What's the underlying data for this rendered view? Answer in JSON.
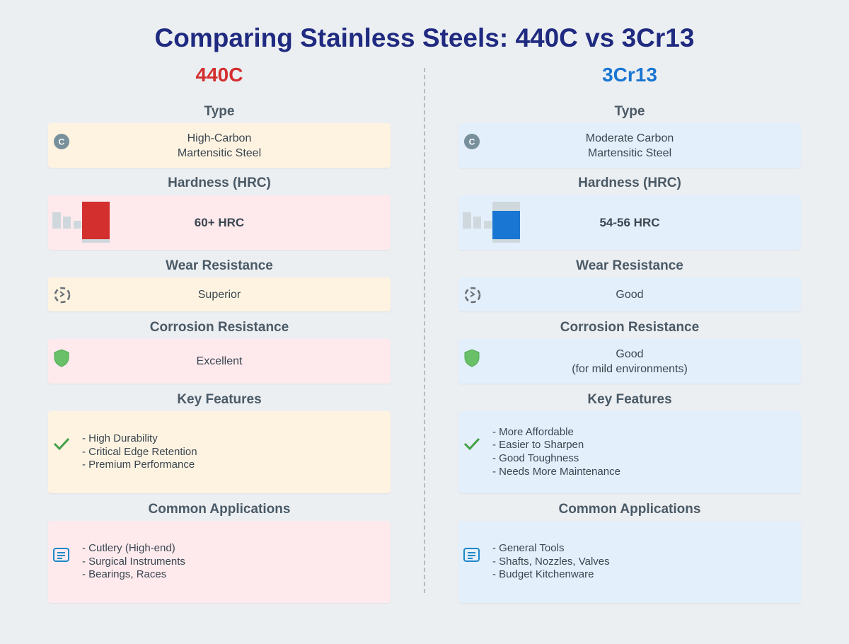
{
  "title": "Comparing Stainless Steels: 440C vs 3Cr13",
  "colors": {
    "title": "#1f2a80",
    "steel_440c": "#d32f2f",
    "steel_3cr13": "#1976d2",
    "bg_orange": "#fef3e1",
    "bg_pink": "#feeaed",
    "bg_blue": "#e3effb",
    "check": "#43a047",
    "shield": "#6abf69",
    "doc_icon": "#1e88c7"
  },
  "left": {
    "name": "440C",
    "type_label": "Type",
    "type_value": "High-Carbon\nMartensitic Steel",
    "hardness_label": "Hardness (HRC)",
    "hardness_value": "60+ HRC",
    "hardness_level": 1.0,
    "wear_label": "Wear Resistance",
    "wear_value": "Superior",
    "corrosion_label": "Corrosion Resistance",
    "corrosion_value": "Excellent",
    "features_label": "Key Features",
    "features": [
      "- High Durability",
      "- Critical Edge Retention",
      "- Premium Performance"
    ],
    "applications_label": "Common Applications",
    "applications": [
      "- Cutlery (High-end)",
      "- Surgical Instruments",
      "- Bearings, Races"
    ]
  },
  "right": {
    "name": "3Cr13",
    "type_label": "Type",
    "type_value": "Moderate Carbon\nMartensitic Steel",
    "hardness_label": "Hardness (HRC)",
    "hardness_value": "54-56 HRC",
    "hardness_level": 0.75,
    "wear_label": "Wear Resistance",
    "wear_value": "Good",
    "corrosion_label": "Corrosion Resistance",
    "corrosion_value": "Good\n(for mild environments)",
    "features_label": "Key Features",
    "features": [
      "- More Affordable",
      "- Easier to Sharpen",
      "- Good Toughness",
      "- Needs More Maintenance"
    ],
    "applications_label": "Common Applications",
    "applications": [
      "- General Tools",
      "- Shafts, Nozzles, Valves",
      "- Budget Kitchenware"
    ]
  },
  "icons": {
    "type": "carbon-c-icon",
    "hardness": "hardness-bar-icon",
    "wear": "wear-cycle-icon",
    "corrosion": "shield-icon",
    "features": "check-icon",
    "applications": "document-list-icon"
  }
}
